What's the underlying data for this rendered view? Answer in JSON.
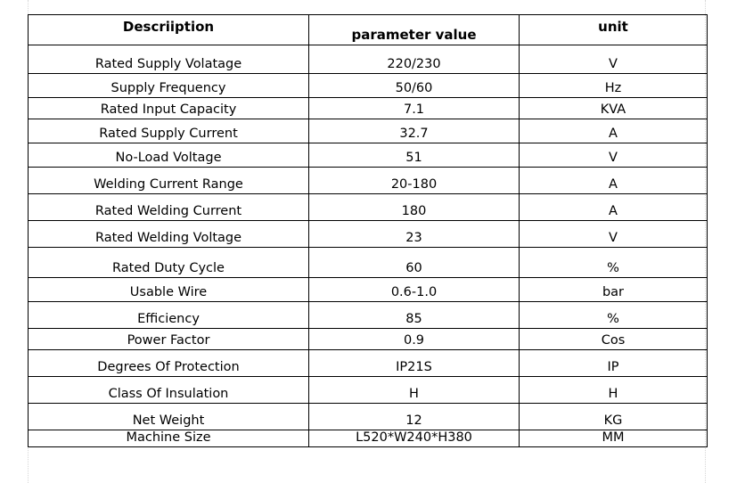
{
  "table": {
    "headers": {
      "description": "Descriiption",
      "value": "parameter value",
      "unit": "unit"
    },
    "rows": [
      {
        "description": "Rated Supply Volatage",
        "value": "220/230",
        "unit": "V"
      },
      {
        "description": "Supply Frequency",
        "value": "50/60",
        "unit": "Hz"
      },
      {
        "description": "Rated Input Capacity",
        "value": "7.1",
        "unit": "KVA"
      },
      {
        "description": "Rated Supply Current",
        "value": "32.7",
        "unit": "A"
      },
      {
        "description": "No-Load Voltage",
        "value": "51",
        "unit": "V"
      },
      {
        "description": "Welding Current Range",
        "value": "20-180",
        "unit": "A"
      },
      {
        "description": "Rated Welding Current",
        "value": "180",
        "unit": "A"
      },
      {
        "description": "Rated Welding Voltage",
        "value": "23",
        "unit": "V"
      },
      {
        "description": "Rated Duty Cycle",
        "value": "60",
        "unit": "%"
      },
      {
        "description": "Usable Wire",
        "value": "0.6-1.0",
        "unit": "bar"
      },
      {
        "description": "Efficiency",
        "value": "85",
        "unit": "%"
      },
      {
        "description": "Power Factor",
        "value": "0.9",
        "unit": "Cos"
      },
      {
        "description": "Degrees Of Protection",
        "value": "IP21S",
        "unit": "IP"
      },
      {
        "description": "Class Of Insulation",
        "value": "H",
        "unit": "H"
      },
      {
        "description": "Net Weight",
        "value": "12",
        "unit": "KG"
      },
      {
        "description": "Machine Size",
        "value": "L520*W240*H380",
        "unit": "MM"
      }
    ]
  }
}
